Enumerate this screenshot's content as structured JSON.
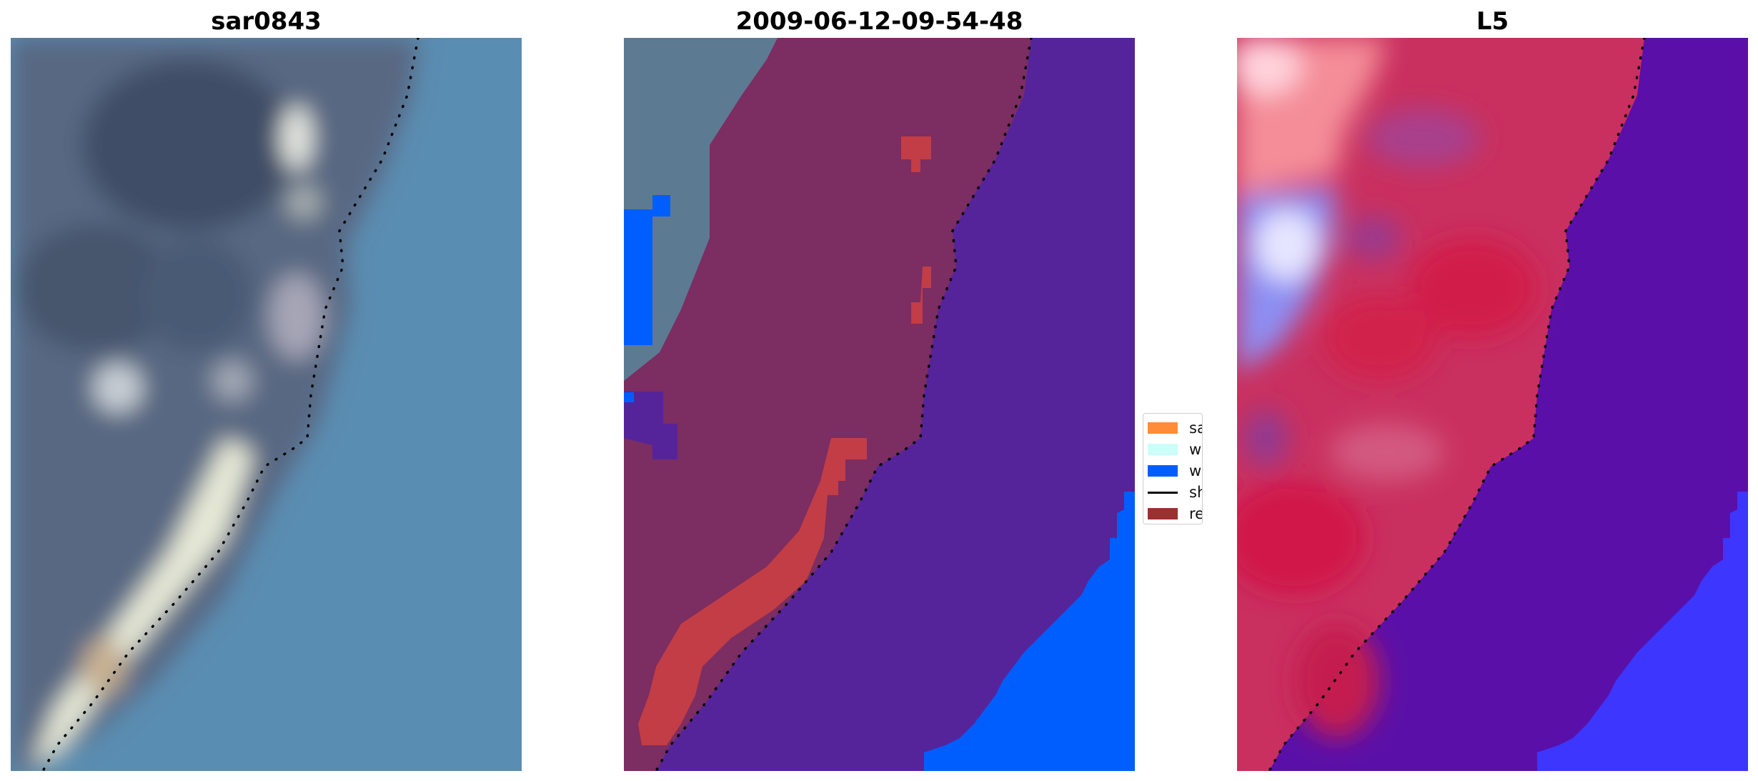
{
  "panels": [
    {
      "id": "rgb",
      "title": "sar0843"
    },
    {
      "id": "classified",
      "title": "2009-06-12-09-54-48"
    },
    {
      "id": "index",
      "title": "L5"
    }
  ],
  "legend": {
    "items": [
      {
        "label": "sand",
        "kind": "patch",
        "color": "#ff8c38"
      },
      {
        "label": "whitew",
        "kind": "patch",
        "color": "#ccfff9"
      },
      {
        "label": "water",
        "kind": "patch",
        "color": "#005eff"
      },
      {
        "label": "shorel",
        "kind": "line",
        "color": "#000000"
      },
      {
        "label": "referer",
        "kind": "patch",
        "color": "#9b3030"
      }
    ]
  },
  "colors": {
    "sea_rgb": "#5a8db2",
    "land_rgb": "#586882",
    "class_land": "#7c2d61",
    "class_water_magenta": "#55249a",
    "class_water_blue": "#005eff",
    "class_reference": "#c23d45",
    "index_land": "#d4305c",
    "index_water": "#5a10a8",
    "index_water_blue": "#3c36ff",
    "shoreline": "#000000"
  }
}
